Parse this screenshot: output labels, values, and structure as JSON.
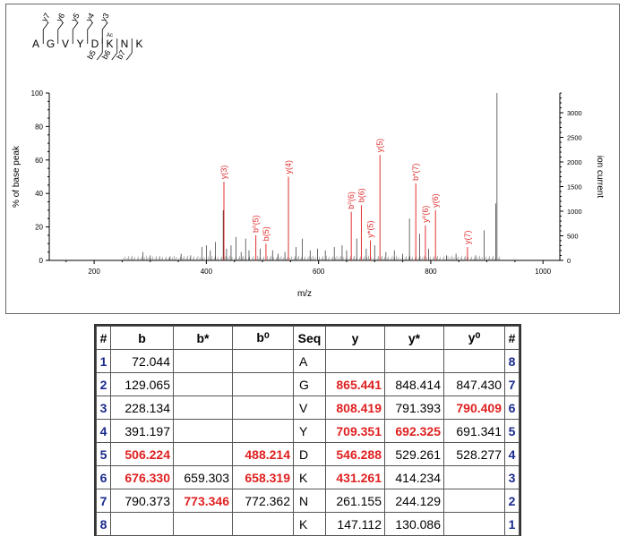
{
  "chart_data": {
    "type": "bar",
    "title": "",
    "xlabel": "m/z",
    "ylabel": "% of base peak",
    "y2label": "ion current",
    "xlim": [
      120,
      1030
    ],
    "ylim": [
      0,
      100
    ],
    "y2lim": [
      0,
      3400
    ],
    "xticks": [
      "200",
      "400",
      "600",
      "800",
      "1000"
    ],
    "yticks": [
      "0",
      "20",
      "40",
      "60",
      "80",
      "100"
    ],
    "y2ticks": [
      "0",
      "500",
      "1000",
      "1500",
      "2000",
      "2500",
      "3000"
    ],
    "grid": false,
    "peptide": {
      "residues": [
        "A",
        "G",
        "V",
        "Y",
        "D",
        "K",
        "N",
        "K"
      ],
      "modification": "Ac",
      "y_ions": [
        "y7",
        "y6",
        "y5",
        "y4",
        "y3"
      ],
      "b_ions": [
        "b5",
        "b6",
        "b7"
      ]
    },
    "annotated_peaks": [
      {
        "label": "y(3)",
        "mz": 431.3,
        "value": 47
      },
      {
        "label": "b⁰(5)",
        "mz": 488.2,
        "value": 15
      },
      {
        "label": "b(5)",
        "mz": 506.2,
        "value": 10
      },
      {
        "label": "y(4)",
        "mz": 546.3,
        "value": 50
      },
      {
        "label": "b⁰(6)",
        "mz": 658.3,
        "value": 29
      },
      {
        "label": "b(6)",
        "mz": 676.3,
        "value": 33
      },
      {
        "label": "y*(5)",
        "mz": 692.3,
        "value": 12
      },
      {
        "label": "y(5)",
        "mz": 709.4,
        "value": 63
      },
      {
        "label": "b*(7)",
        "mz": 773.3,
        "value": 46
      },
      {
        "label": "y⁰(6)",
        "mz": 790.4,
        "value": 21
      },
      {
        "label": "y(6)",
        "mz": 808.4,
        "value": 30
      },
      {
        "label": "y(7)",
        "mz": 865.4,
        "value": 8
      }
    ],
    "unannotated_peaks": [
      {
        "mz": 287,
        "value": 5
      },
      {
        "mz": 300,
        "value": 3
      },
      {
        "mz": 335,
        "value": 2
      },
      {
        "mz": 355,
        "value": 4
      },
      {
        "mz": 372,
        "value": 3
      },
      {
        "mz": 392,
        "value": 8
      },
      {
        "mz": 400,
        "value": 9
      },
      {
        "mz": 407,
        "value": 6
      },
      {
        "mz": 416,
        "value": 11
      },
      {
        "mz": 430,
        "value": 30
      },
      {
        "mz": 436,
        "value": 7
      },
      {
        "mz": 444,
        "value": 9
      },
      {
        "mz": 453,
        "value": 14
      },
      {
        "mz": 462,
        "value": 5
      },
      {
        "mz": 470,
        "value": 13
      },
      {
        "mz": 476,
        "value": 6
      },
      {
        "mz": 496,
        "value": 7
      },
      {
        "mz": 518,
        "value": 6
      },
      {
        "mz": 528,
        "value": 4
      },
      {
        "mz": 540,
        "value": 5
      },
      {
        "mz": 560,
        "value": 8
      },
      {
        "mz": 571,
        "value": 13
      },
      {
        "mz": 585,
        "value": 6
      },
      {
        "mz": 598,
        "value": 7
      },
      {
        "mz": 612,
        "value": 6
      },
      {
        "mz": 628,
        "value": 8
      },
      {
        "mz": 642,
        "value": 9
      },
      {
        "mz": 650,
        "value": 6
      },
      {
        "mz": 668,
        "value": 13
      },
      {
        "mz": 685,
        "value": 7
      },
      {
        "mz": 700,
        "value": 9
      },
      {
        "mz": 720,
        "value": 5
      },
      {
        "mz": 735,
        "value": 6
      },
      {
        "mz": 750,
        "value": 4
      },
      {
        "mz": 762,
        "value": 25
      },
      {
        "mz": 780,
        "value": 16
      },
      {
        "mz": 796,
        "value": 7
      },
      {
        "mz": 828,
        "value": 3
      },
      {
        "mz": 845,
        "value": 4
      },
      {
        "mz": 880,
        "value": 3
      },
      {
        "mz": 895,
        "value": 18
      },
      {
        "mz": 916,
        "value": 34
      },
      {
        "mz": 918,
        "value": 100
      }
    ]
  },
  "table": {
    "headers": [
      "#",
      "b",
      "b*",
      "b⁰",
      "Seq",
      "y",
      "y*",
      "y⁰",
      "#"
    ],
    "rows": [
      {
        "n": "1",
        "b": "72.044",
        "bs": "",
        "b0": "",
        "seq": "A",
        "y": "",
        "ys": "",
        "y0": "",
        "n2": "8",
        "hl": []
      },
      {
        "n": "2",
        "b": "129.065",
        "bs": "",
        "b0": "",
        "seq": "G",
        "y": "865.441",
        "ys": "848.414",
        "y0": "847.430",
        "n2": "7",
        "hl": [
          "y"
        ]
      },
      {
        "n": "3",
        "b": "228.134",
        "bs": "",
        "b0": "",
        "seq": "V",
        "y": "808.419",
        "ys": "791.393",
        "y0": "790.409",
        "n2": "6",
        "hl": [
          "y",
          "y0"
        ]
      },
      {
        "n": "4",
        "b": "391.197",
        "bs": "",
        "b0": "",
        "seq": "Y",
        "y": "709.351",
        "ys": "692.325",
        "y0": "691.341",
        "n2": "5",
        "hl": [
          "y",
          "ys"
        ]
      },
      {
        "n": "5",
        "b": "506.224",
        "bs": "",
        "b0": "488.214",
        "seq": "D",
        "y": "546.288",
        "ys": "529.261",
        "y0": "528.277",
        "n2": "4",
        "hl": [
          "b",
          "b0",
          "y"
        ]
      },
      {
        "n": "6",
        "b": "676.330",
        "bs": "659.303",
        "b0": "658.319",
        "seq": "K",
        "y": "431.261",
        "ys": "414.234",
        "y0": "",
        "n2": "3",
        "hl": [
          "b",
          "b0",
          "y"
        ]
      },
      {
        "n": "7",
        "b": "790.373",
        "bs": "773.346",
        "b0": "772.362",
        "seq": "N",
        "y": "261.155",
        "ys": "244.129",
        "y0": "",
        "n2": "2",
        "hl": [
          "bs"
        ]
      },
      {
        "n": "8",
        "b": "",
        "bs": "",
        "b0": "",
        "seq": "K",
        "y": "147.112",
        "ys": "130.086",
        "y0": "",
        "n2": "1",
        "hl": []
      }
    ]
  }
}
